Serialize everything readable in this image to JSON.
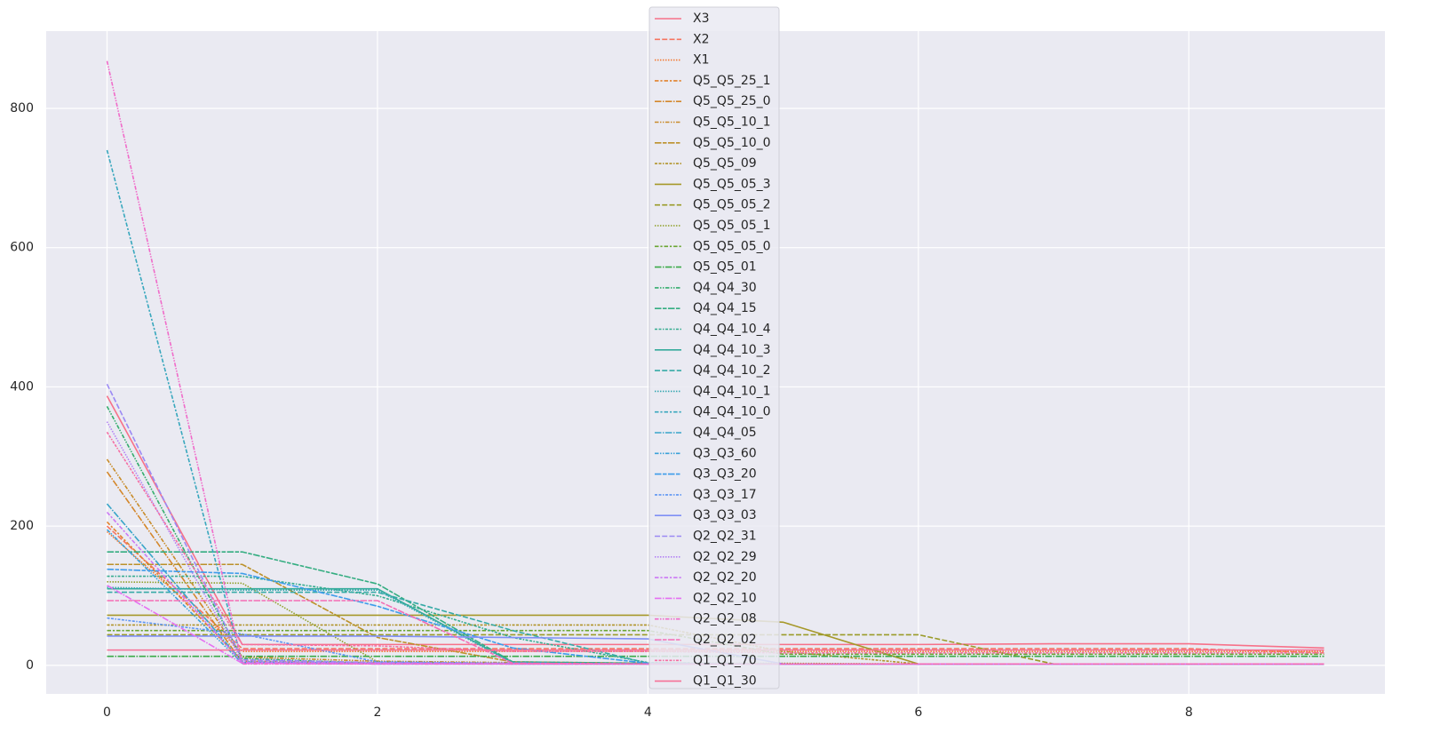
{
  "chart_data": {
    "type": "line",
    "grid": true,
    "legend": "upper center",
    "x": [
      0,
      1,
      2,
      3,
      4,
      5,
      6,
      7,
      8,
      9
    ],
    "xlim": [
      -0.45,
      9.45
    ],
    "xticks": [
      0,
      2,
      4,
      6,
      8
    ],
    "ylim": [
      -41,
      911
    ],
    "yticks": [
      0,
      200,
      400,
      600,
      800
    ],
    "series": [
      {
        "name": "X3",
        "color": "#f77189",
        "values": [
          387,
          30,
          30,
          30,
          30,
          30,
          30,
          31,
          31,
          25
        ]
      },
      {
        "name": "X2",
        "color": "#f67560",
        "values": [
          200,
          24,
          24,
          24,
          24,
          24,
          24,
          24,
          24,
          18
        ]
      },
      {
        "name": "X1",
        "color": "#f37932",
        "values": [
          192,
          20,
          20,
          20,
          20,
          20,
          20,
          20,
          20,
          20
        ]
      },
      {
        "name": "Q5_Q5_25_1",
        "color": "#e1812c",
        "values": [
          206,
          6,
          4,
          3,
          3,
          2,
          2,
          2,
          2,
          2
        ]
      },
      {
        "name": "Q5_Q5_25_0",
        "color": "#d4872b",
        "values": [
          278,
          4,
          3,
          3,
          2,
          2,
          2,
          2,
          2,
          2
        ]
      },
      {
        "name": "Q5_Q5_10_1",
        "color": "#c88c2a",
        "values": [
          296,
          12,
          6,
          4,
          3,
          2,
          2,
          2,
          2,
          2
        ]
      },
      {
        "name": "Q5_Q5_10_0",
        "color": "#bc912a",
        "values": [
          145,
          145,
          40,
          5,
          3,
          2,
          2,
          2,
          2,
          2
        ]
      },
      {
        "name": "Q5_Q5_09",
        "color": "#b19429",
        "values": [
          58,
          58,
          58,
          58,
          58,
          20,
          2,
          2,
          2,
          2
        ]
      },
      {
        "name": "Q5_Q5_05_3",
        "color": "#a69829",
        "values": [
          72,
          72,
          72,
          72,
          72,
          62,
          2,
          2,
          2,
          2
        ]
      },
      {
        "name": "Q5_Q5_05_2",
        "color": "#9a9b28",
        "values": [
          44,
          44,
          44,
          44,
          44,
          44,
          44,
          2,
          2,
          2
        ]
      },
      {
        "name": "Q5_Q5_05_1",
        "color": "#8e9f28",
        "values": [
          120,
          118,
          5,
          3,
          3,
          3,
          2,
          2,
          2,
          2
        ]
      },
      {
        "name": "Q5_Q5_05_0",
        "color": "#6aa531",
        "values": [
          50,
          50,
          50,
          50,
          50,
          16,
          16,
          16,
          16,
          16
        ]
      },
      {
        "name": "Q5_Q5_01",
        "color": "#3aaa48",
        "values": [
          13,
          13,
          13,
          13,
          13,
          13,
          13,
          13,
          13,
          13
        ]
      },
      {
        "name": "Q4_Q4_30",
        "color": "#33ad6c",
        "values": [
          372,
          10,
          3,
          2,
          2,
          2,
          2,
          2,
          2,
          2
        ]
      },
      {
        "name": "Q4_Q4_15",
        "color": "#34ad81",
        "values": [
          163,
          163,
          117,
          5,
          3,
          2,
          2,
          2,
          2,
          2
        ]
      },
      {
        "name": "Q4_Q4_10_4",
        "color": "#35ac8f",
        "values": [
          128,
          128,
          100,
          40,
          4,
          2,
          2,
          2,
          2,
          2
        ]
      },
      {
        "name": "Q4_Q4_10_3",
        "color": "#35ab9b",
        "values": [
          110,
          110,
          110,
          4,
          2,
          2,
          2,
          2,
          2,
          2
        ]
      },
      {
        "name": "Q4_Q4_10_2",
        "color": "#36aaa6",
        "values": [
          105,
          105,
          105,
          50,
          3,
          2,
          2,
          2,
          2,
          2
        ]
      },
      {
        "name": "Q4_Q4_10_1",
        "color": "#37a8b1",
        "values": [
          112,
          108,
          108,
          3,
          2,
          2,
          2,
          2,
          2,
          2
        ]
      },
      {
        "name": "Q4_Q4_10_0",
        "color": "#38a7bd",
        "values": [
          740,
          4,
          2,
          2,
          2,
          2,
          2,
          2,
          2,
          2
        ]
      },
      {
        "name": "Q4_Q4_05",
        "color": "#39a5c9",
        "values": [
          232,
          5,
          3,
          2,
          2,
          2,
          2,
          2,
          2,
          2
        ]
      },
      {
        "name": "Q3_Q3_60",
        "color": "#3ba2d9",
        "values": [
          195,
          3,
          2,
          2,
          2,
          2,
          2,
          2,
          2,
          2
        ]
      },
      {
        "name": "Q3_Q3_20",
        "color": "#3d9cea",
        "values": [
          138,
          132,
          85,
          25,
          3,
          2,
          2,
          2,
          2,
          2
        ]
      },
      {
        "name": "Q3_Q3_17",
        "color": "#5c95f3",
        "values": [
          68,
          45,
          5,
          3,
          2,
          2,
          2,
          2,
          2,
          2
        ]
      },
      {
        "name": "Q3_Q3_03",
        "color": "#7f8ff5",
        "values": [
          42,
          42,
          42,
          40,
          38,
          2,
          2,
          2,
          2,
          2
        ]
      },
      {
        "name": "Q2_Q2_31",
        "color": "#9b89f4",
        "values": [
          404,
          8,
          4,
          3,
          2,
          2,
          2,
          2,
          2,
          2
        ]
      },
      {
        "name": "Q2_Q2_29",
        "color": "#b381f4",
        "values": [
          350,
          6,
          3,
          2,
          2,
          2,
          2,
          2,
          2,
          2
        ]
      },
      {
        "name": "Q2_Q2_20",
        "color": "#cb78f4",
        "values": [
          220,
          4,
          3,
          2,
          2,
          2,
          2,
          2,
          2,
          2
        ]
      },
      {
        "name": "Q2_Q2_10",
        "color": "#e66ff2",
        "values": [
          115,
          3,
          2,
          2,
          2,
          2,
          2,
          2,
          2,
          2
        ]
      },
      {
        "name": "Q2_Q2_08",
        "color": "#f06bc9",
        "values": [
          868,
          2,
          2,
          2,
          2,
          2,
          2,
          2,
          2,
          2
        ]
      },
      {
        "name": "Q2_Q2_02",
        "color": "#f46cb5",
        "values": [
          93,
          93,
          93,
          3,
          2,
          2,
          2,
          2,
          2,
          2
        ]
      },
      {
        "name": "Q1_Q1_70",
        "color": "#f56ea3",
        "values": [
          335,
          30,
          28,
          20,
          20,
          18,
          18,
          18,
          18,
          18
        ]
      },
      {
        "name": "Q1_Q1_30",
        "color": "#f67096",
        "values": [
          22,
          22,
          22,
          22,
          22,
          22,
          22,
          22,
          22,
          22
        ]
      }
    ]
  }
}
